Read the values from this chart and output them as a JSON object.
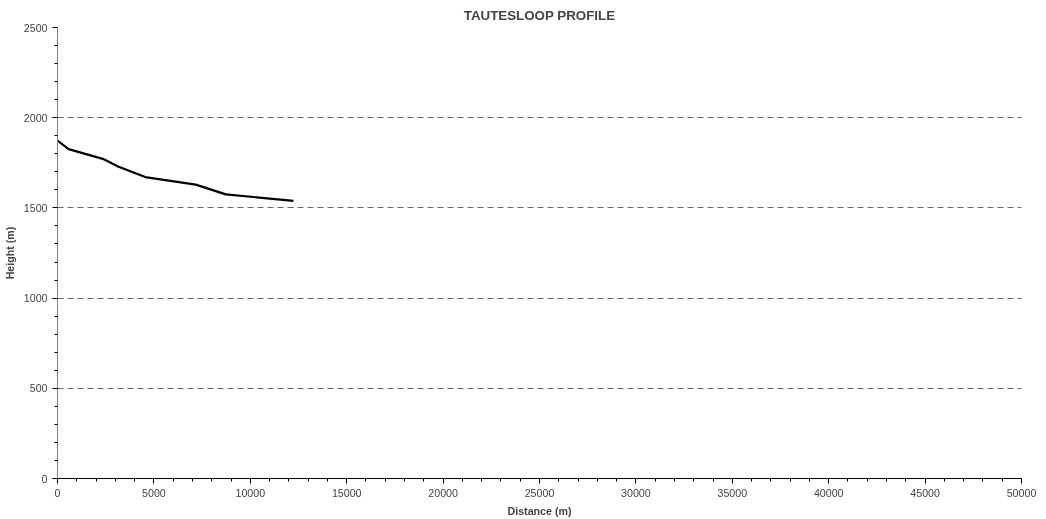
{
  "chart_data": {
    "type": "line",
    "title": "TAUTESLOOP PROFILE",
    "xlabel": "Distance (m)",
    "ylabel": "Height (m)",
    "x": [
      0,
      575,
      2350,
      3140,
      4550,
      7170,
      8730,
      12240
    ],
    "series": [
      {
        "color": "#000000",
        "values": [
          1873,
          1826,
          1772,
          1730,
          1671,
          1629,
          1575,
          1539
        ]
      }
    ],
    "xlim": [
      0,
      50000
    ],
    "xticks": [
      0,
      5000,
      10000,
      15000,
      20000,
      25000,
      30000,
      35000,
      40000,
      45000,
      50000
    ],
    "ylim": [
      0,
      2500
    ],
    "yticks": [
      0,
      500,
      1000,
      1500,
      2000,
      2500
    ],
    "grid": "y",
    "line_style": "solid",
    "marker": "none"
  }
}
